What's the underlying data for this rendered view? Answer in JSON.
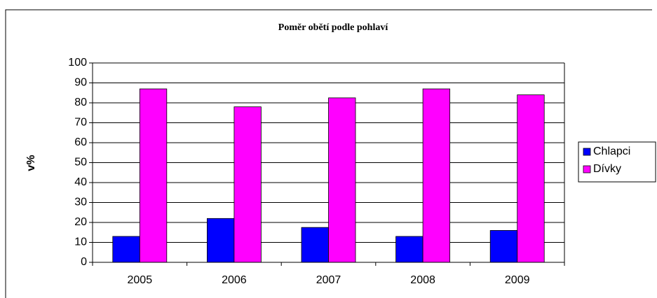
{
  "chart_data": {
    "type": "bar",
    "title": "Poměr obětí podle pohlaví",
    "y_label": "v%",
    "categories": [
      "2005",
      "2006",
      "2007",
      "2008",
      "2009"
    ],
    "series": [
      {
        "name": "Chlapci",
        "color": "#0000ff",
        "values": [
          13,
          22,
          17.5,
          13,
          16
        ]
      },
      {
        "name": "Dívky",
        "color": "#ff00ff",
        "values": [
          87,
          78,
          82.5,
          87,
          84
        ]
      }
    ],
    "ylim": [
      0,
      100
    ],
    "yticks": [
      0,
      10,
      20,
      30,
      40,
      50,
      60,
      70,
      80,
      90,
      100
    ],
    "grid": true,
    "legend": "right"
  }
}
